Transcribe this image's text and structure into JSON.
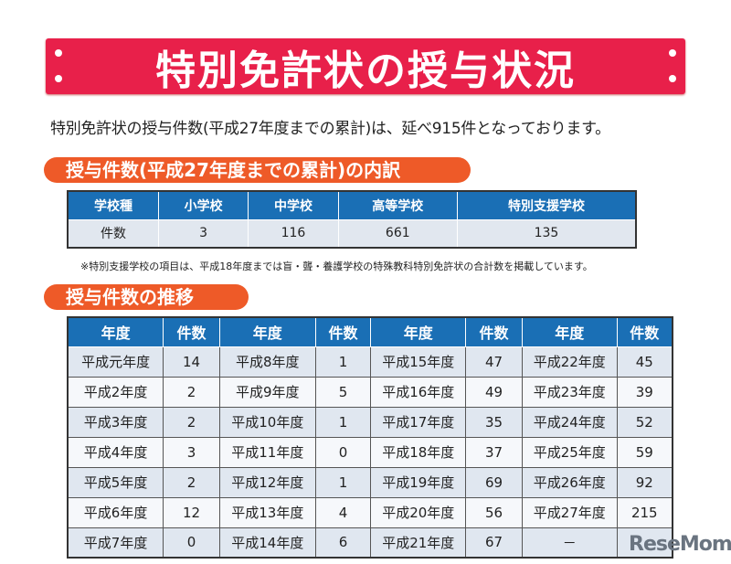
{
  "title": "特別免許状の授与状況",
  "lead": "特別免許状の授与件数(平成27年度までの累計)は、延べ915件となっております。",
  "section1": {
    "heading": "授与件数(平成27年度までの累計)の内訳",
    "headers": [
      "学校種",
      "小学校",
      "中学校",
      "高等学校",
      "特別支援学校"
    ],
    "row": [
      "件数",
      "3",
      "116",
      "661",
      "135"
    ],
    "note": "※特別支援学校の項目は、平成18年度までは盲・聾・養護学校の特殊教科特別免許状の合計数を掲載しています。"
  },
  "section2": {
    "heading": "授与件数の推移",
    "headers": [
      "年度",
      "件数",
      "年度",
      "件数",
      "年度",
      "件数",
      "年度",
      "件数"
    ],
    "rows": [
      [
        "平成元年度",
        "14",
        "平成8年度",
        "1",
        "平成15年度",
        "47",
        "平成22年度",
        "45"
      ],
      [
        "平成2年度",
        "2",
        "平成9年度",
        "5",
        "平成16年度",
        "49",
        "平成23年度",
        "39"
      ],
      [
        "平成3年度",
        "2",
        "平成10年度",
        "1",
        "平成17年度",
        "35",
        "平成24年度",
        "52"
      ],
      [
        "平成4年度",
        "3",
        "平成11年度",
        "0",
        "平成18年度",
        "37",
        "平成25年度",
        "59"
      ],
      [
        "平成5年度",
        "2",
        "平成12年度",
        "1",
        "平成19年度",
        "69",
        "平成26年度",
        "92"
      ],
      [
        "平成6年度",
        "12",
        "平成13年度",
        "4",
        "平成20年度",
        "56",
        "平成27年度",
        "215"
      ],
      [
        "平成7年度",
        "0",
        "平成14年度",
        "6",
        "平成21年度",
        "67",
        "－",
        ""
      ]
    ]
  },
  "watermark": "ReseMom",
  "colors": {
    "banner": "#e8204a",
    "pill": "#ee5a28",
    "header": "#1a6fb5"
  }
}
